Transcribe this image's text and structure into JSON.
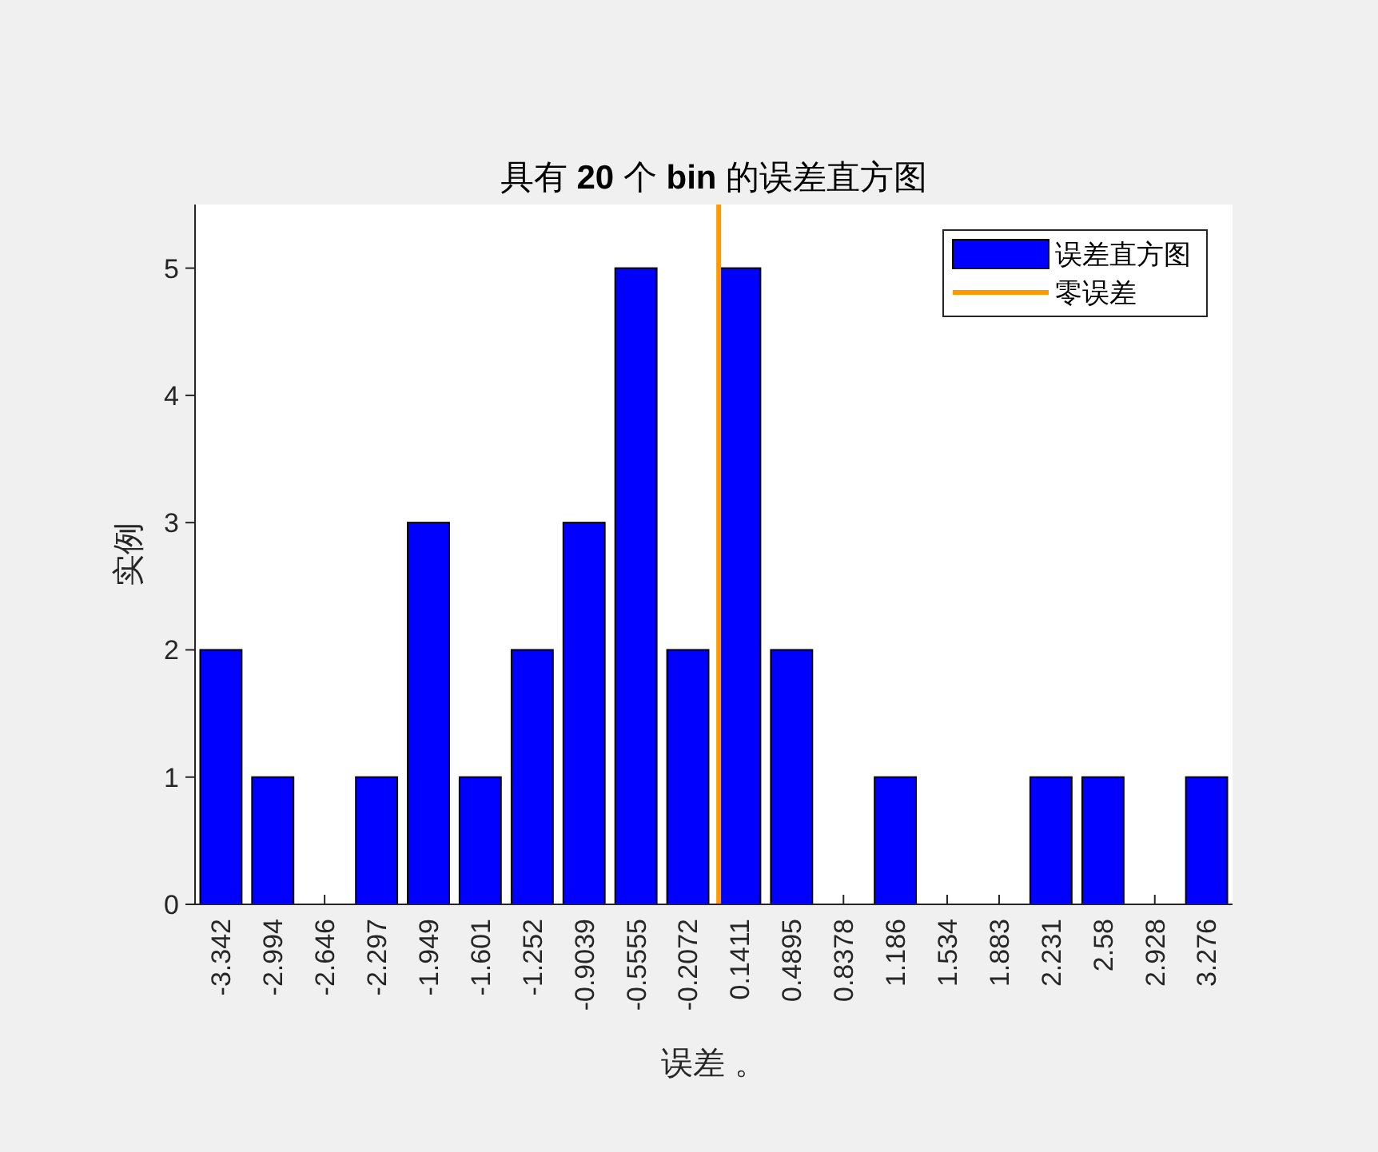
{
  "chart_data": {
    "type": "bar",
    "title": "具有 20 个 bin 的误差直方图",
    "xlabel": "误差 。",
    "ylabel": "实例",
    "x": [
      -3.342,
      -2.994,
      -2.646,
      -2.297,
      -1.949,
      -1.601,
      -1.252,
      -0.9039,
      -0.5555,
      -0.2072,
      0.1411,
      0.4895,
      0.8378,
      1.186,
      1.534,
      1.883,
      2.231,
      2.58,
      2.928,
      3.276
    ],
    "series": [
      {
        "name": "误差直方图",
        "color": "#0000ff",
        "values": [
          2,
          1,
          0,
          1,
          3,
          1,
          2,
          3,
          5,
          2,
          5,
          2,
          0,
          1,
          0,
          0,
          1,
          1,
          0,
          1
        ]
      },
      {
        "type": "line",
        "name": "零误差",
        "color": "#ff9900",
        "x": [
          0,
          0
        ],
        "values": [
          0,
          5.5
        ]
      }
    ],
    "xlim": [
      -3.516,
      3.45
    ],
    "xticks": [
      -3.342,
      -2.994,
      -2.646,
      -2.297,
      -1.949,
      -1.601,
      -1.252,
      -0.9039,
      -0.5555,
      -0.2072,
      0.1411,
      0.4895,
      0.8378,
      1.186,
      1.534,
      1.883,
      2.231,
      2.58,
      2.928,
      3.276
    ],
    "ylim": [
      0,
      5.5
    ],
    "yticks": [
      0,
      1,
      2,
      3,
      4,
      5
    ],
    "legend": "top right"
  }
}
